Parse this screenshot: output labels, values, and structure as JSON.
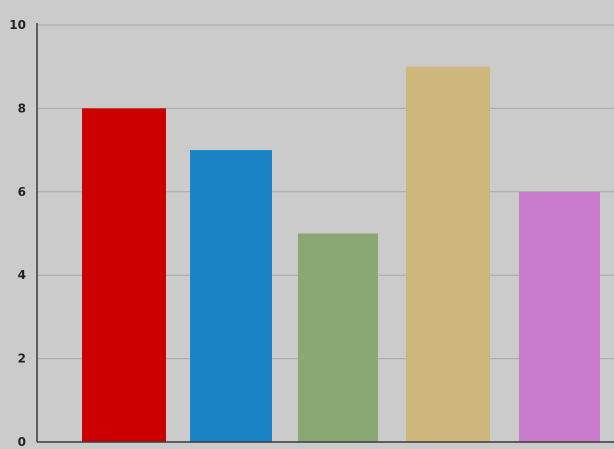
{
  "chart_data": {
    "type": "bar",
    "title": "",
    "xlabel": "",
    "ylabel": "",
    "categories": [
      "",
      "",
      "",
      "",
      ""
    ],
    "values": [
      8,
      7,
      5,
      9,
      6
    ],
    "colors": [
      "#cc0000",
      "#1b84c6",
      "#8aa874",
      "#cdb77d",
      "#c97ccb"
    ],
    "ylim": [
      0,
      10
    ],
    "yticks": [
      0,
      2,
      4,
      6,
      8,
      10
    ],
    "ytick_labels": [
      "0",
      "2",
      "4",
      "6",
      "8",
      "10"
    ],
    "grid": true,
    "legend": "none",
    "background_color": "#cbcbcb",
    "grid_color": "#a8a8a8",
    "axis_color": "#3a3a3a"
  }
}
